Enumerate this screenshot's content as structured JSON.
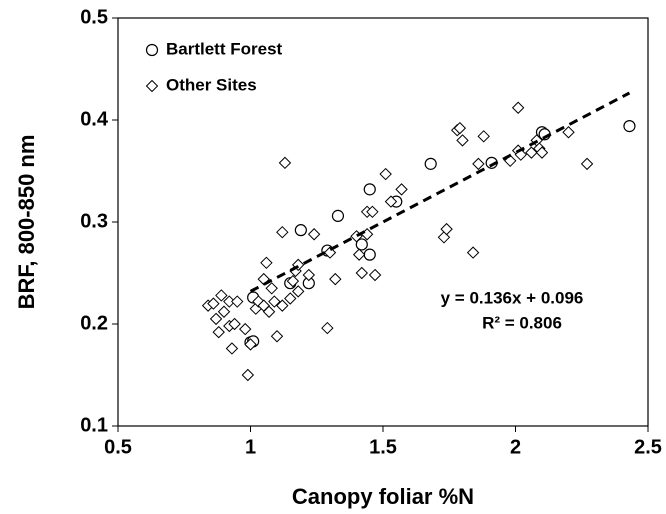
{
  "chart_data": {
    "type": "scatter",
    "xlabel": "Canopy foliar %N",
    "ylabel": "BRF, 800-850 nm",
    "xlim": [
      0.5,
      2.5
    ],
    "xticks": [
      0.5,
      1,
      1.5,
      2,
      2.5
    ],
    "ylim": [
      0.1,
      0.5
    ],
    "yticks": [
      0.1,
      0.2,
      0.3,
      0.4,
      0.5
    ],
    "legend": "upper-left",
    "series": [
      {
        "name": "Bartlett Forest",
        "marker": "circle",
        "color": "#000000",
        "x": [
          1.0,
          1.01,
          1.01,
          1.15,
          1.19,
          1.22,
          1.29,
          1.33,
          1.42,
          1.45,
          1.45,
          1.55,
          1.68,
          1.91,
          2.1,
          2.11,
          2.43
        ],
        "values": [
          0.182,
          0.183,
          0.226,
          0.24,
          0.292,
          0.24,
          0.272,
          0.306,
          0.278,
          0.332,
          0.268,
          0.32,
          0.357,
          0.358,
          0.388,
          0.386,
          0.394
        ]
      },
      {
        "name": "Other Sites",
        "marker": "diamond",
        "color": "#000000",
        "x": [
          0.84,
          0.86,
          0.87,
          0.88,
          0.89,
          0.9,
          0.92,
          0.92,
          0.93,
          0.94,
          0.95,
          0.98,
          0.99,
          1.0,
          1.02,
          1.03,
          1.05,
          1.05,
          1.06,
          1.07,
          1.08,
          1.09,
          1.1,
          1.12,
          1.12,
          1.13,
          1.15,
          1.16,
          1.17,
          1.18,
          1.18,
          1.22,
          1.24,
          1.29,
          1.3,
          1.32,
          1.4,
          1.41,
          1.42,
          1.44,
          1.44,
          1.46,
          1.47,
          1.51,
          1.53,
          1.57,
          1.73,
          1.74,
          1.78,
          1.79,
          1.8,
          1.84,
          1.86,
          1.88,
          1.98,
          2.01,
          2.01,
          2.02,
          2.06,
          2.08,
          2.09,
          2.1,
          2.2,
          2.27
        ],
        "values": [
          0.218,
          0.22,
          0.205,
          0.192,
          0.228,
          0.212,
          0.198,
          0.222,
          0.176,
          0.2,
          0.222,
          0.195,
          0.15,
          0.18,
          0.215,
          0.222,
          0.218,
          0.244,
          0.26,
          0.212,
          0.235,
          0.222,
          0.188,
          0.29,
          0.218,
          0.358,
          0.225,
          0.242,
          0.252,
          0.258,
          0.232,
          0.248,
          0.288,
          0.196,
          0.27,
          0.244,
          0.286,
          0.268,
          0.25,
          0.31,
          0.288,
          0.31,
          0.248,
          0.347,
          0.32,
          0.332,
          0.285,
          0.293,
          0.39,
          0.392,
          0.38,
          0.27,
          0.357,
          0.384,
          0.36,
          0.37,
          0.412,
          0.366,
          0.368,
          0.38,
          0.372,
          0.368,
          0.388,
          0.357
        ]
      }
    ],
    "trendline": {
      "slope": 0.136,
      "intercept": 0.096,
      "x": [
        1.0,
        2.43
      ]
    },
    "annotations": [
      "y = 0.136x + 0.096",
      "R² = 0.806"
    ]
  }
}
